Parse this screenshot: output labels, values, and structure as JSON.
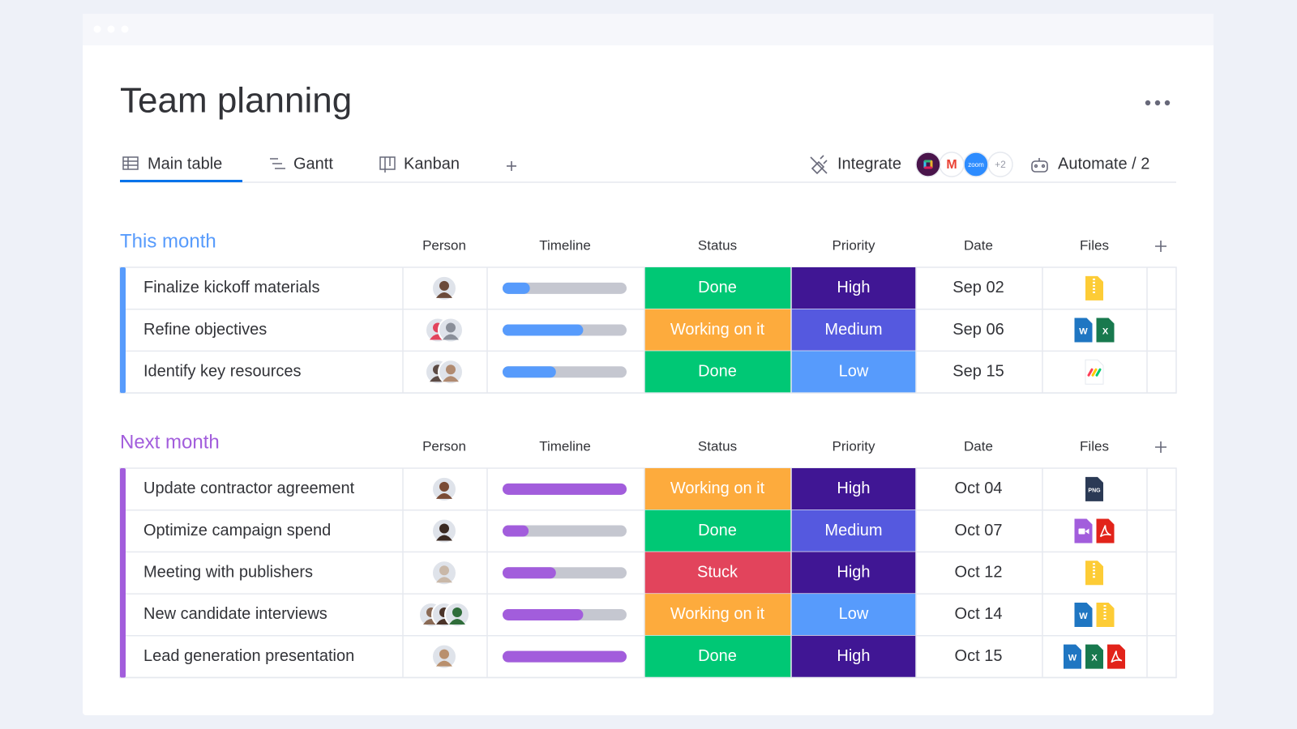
{
  "header": {
    "title": "Team planning"
  },
  "tabs": [
    "Main table",
    "Gantt",
    "Kanban"
  ],
  "integrate": "Integrate",
  "apps": [
    {
      "kind": "slack",
      "color": "#4a154b"
    },
    {
      "kind": "gmail",
      "label": "M",
      "color": "#ffffff"
    },
    {
      "kind": "zoom",
      "label": "zoom",
      "color": "#2d8cff"
    },
    {
      "kind": "more",
      "label": "+2",
      "color": "#ffffff"
    }
  ],
  "automate": "Automate / 2",
  "columns": [
    "Person",
    "Timeline",
    "Status",
    "Priority",
    "Date",
    "Files"
  ],
  "groups": [
    {
      "title": "This month",
      "color": "#579bfc",
      "rows": [
        {
          "task": "Finalize kickoff materials",
          "people": [
            "#6b4a3a"
          ],
          "progress": 0.22,
          "status": {
            "label": "Done",
            "color": "#00c875"
          },
          "priority": {
            "label": "High",
            "color": "#401694"
          },
          "date": "Sep 02",
          "files": [
            {
              "kind": "zip",
              "color": "#fdcc36"
            }
          ]
        },
        {
          "task": "Refine objectives",
          "people": [
            "#e2445c",
            "#8a8f99"
          ],
          "progress": 0.65,
          "status": {
            "label": "Working on it",
            "color": "#fdab3d"
          },
          "priority": {
            "label": "Medium",
            "color": "#5559df"
          },
          "date": "Sep 06",
          "files": [
            {
              "kind": "word",
              "label": "W",
              "color": "#1f76c2"
            },
            {
              "kind": "excel",
              "label": "X",
              "color": "#18794e"
            }
          ]
        },
        {
          "task": "Identify key resources",
          "people": [
            "#5c4b45",
            "#b08a70"
          ],
          "progress": 0.43,
          "status": {
            "label": "Done",
            "color": "#00c875"
          },
          "priority": {
            "label": "Low",
            "color": "#579bfc"
          },
          "date": "Sep 15",
          "files": [
            {
              "kind": "monday",
              "color": "#ffffff"
            }
          ]
        }
      ]
    },
    {
      "title": "Next month",
      "color": "#a25ddc",
      "rows": [
        {
          "task": "Update contractor agreement",
          "people": [
            "#7a4b35"
          ],
          "progress": 1.0,
          "status": {
            "label": "Working on it",
            "color": "#fdab3d"
          },
          "priority": {
            "label": "High",
            "color": "#401694"
          },
          "date": "Oct 04",
          "files": [
            {
              "kind": "png",
              "label": "PNG",
              "color": "#2b3a55"
            }
          ]
        },
        {
          "task": "Optimize campaign spend",
          "people": [
            "#3b2a22"
          ],
          "progress": 0.21,
          "status": {
            "label": "Done",
            "color": "#00c875"
          },
          "priority": {
            "label": "Medium",
            "color": "#5559df"
          },
          "date": "Oct 07",
          "files": [
            {
              "kind": "video",
              "color": "#a25ddc"
            },
            {
              "kind": "pdf",
              "color": "#e2231a"
            }
          ]
        },
        {
          "task": "Meeting with publishers",
          "people": [
            "#c9b8a8"
          ],
          "progress": 0.43,
          "status": {
            "label": "Stuck",
            "color": "#e2445c"
          },
          "priority": {
            "label": "High",
            "color": "#401694"
          },
          "date": "Oct 12",
          "files": [
            {
              "kind": "zip",
              "color": "#fdcc36"
            }
          ]
        },
        {
          "task": "New candidate interviews",
          "people": [
            "#8a6a55",
            "#4a3328",
            "#2f6d3a"
          ],
          "progress": 0.65,
          "status": {
            "label": "Working on it",
            "color": "#fdab3d"
          },
          "priority": {
            "label": "Low",
            "color": "#579bfc"
          },
          "date": "Oct 14",
          "files": [
            {
              "kind": "word",
              "label": "W",
              "color": "#1f76c2"
            },
            {
              "kind": "zip",
              "color": "#fdcc36"
            }
          ]
        },
        {
          "task": "Lead generation presentation",
          "people": [
            "#b9906e"
          ],
          "progress": 1.0,
          "status": {
            "label": "Done",
            "color": "#00c875"
          },
          "priority": {
            "label": "High",
            "color": "#401694"
          },
          "date": "Oct 15",
          "files": [
            {
              "kind": "word",
              "label": "W",
              "color": "#1f76c2"
            },
            {
              "kind": "excel",
              "label": "X",
              "color": "#18794e"
            },
            {
              "kind": "pdf",
              "color": "#e2231a"
            }
          ]
        }
      ]
    }
  ]
}
